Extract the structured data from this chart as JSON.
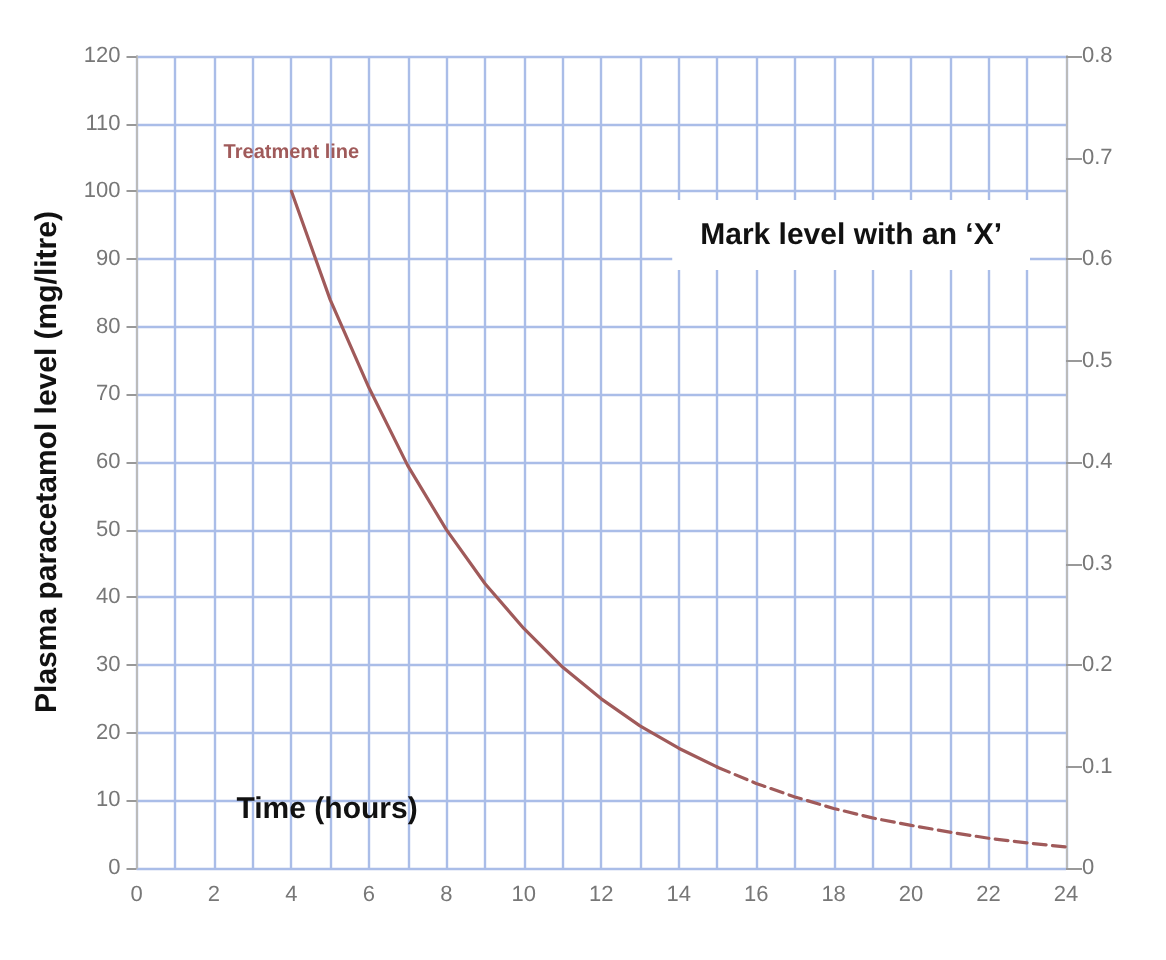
{
  "chart_data": {
    "type": "line",
    "xlabel": "Time (hours)",
    "ylabel": "Plasma paracetamol level (mg/litre)",
    "xlim": [
      0,
      24
    ],
    "xticks": [
      0,
      {
        "value": 1,
        "label": null
      },
      2,
      {
        "value": 3,
        "label": null
      },
      4,
      {
        "value": 5,
        "label": null
      },
      6,
      {
        "value": 7,
        "label": null
      },
      8,
      {
        "value": 9,
        "label": null
      },
      10,
      {
        "value": 11,
        "label": null
      },
      12,
      {
        "value": 13,
        "label": null
      },
      14,
      {
        "value": 15,
        "label": null
      },
      16,
      {
        "value": 17,
        "label": null
      },
      18,
      {
        "value": 19,
        "label": null
      },
      20,
      {
        "value": 21,
        "label": null
      },
      22,
      {
        "value": 23,
        "label": null
      },
      24
    ],
    "ylim": [
      0,
      120
    ],
    "yticks": [
      0,
      10,
      20,
      30,
      40,
      50,
      60,
      70,
      80,
      90,
      100,
      110,
      120
    ],
    "y2lim": [
      0,
      0.8
    ],
    "y2ticks": [
      0,
      0.1,
      0.2,
      0.3,
      0.4,
      0.5,
      0.6,
      0.7,
      0.8
    ],
    "grid": true,
    "marker": "none",
    "series": [
      {
        "color": "#a05a5a",
        "line_style": "solid",
        "x": [
          4,
          5,
          6,
          7,
          8,
          9,
          10,
          11,
          12,
          13,
          14,
          15
        ],
        "values": [
          100,
          84,
          71,
          59.5,
          50,
          42,
          35.4,
          29.7,
          25,
          21,
          17.7,
          14.9
        ]
      },
      {
        "color": "#a05a5a",
        "line_style": "dashed",
        "x": [
          15,
          16,
          17,
          18,
          19,
          20,
          21,
          22,
          23,
          24
        ],
        "values": [
          14.9,
          12.5,
          10.5,
          8.8,
          7.4,
          6.3,
          5.3,
          4.4,
          3.7,
          3.1
        ]
      }
    ],
    "annotations": [
      {
        "text": "Treatment line",
        "x": 4,
        "y": 100
      },
      "Mark level with an ‘X’"
    ]
  }
}
